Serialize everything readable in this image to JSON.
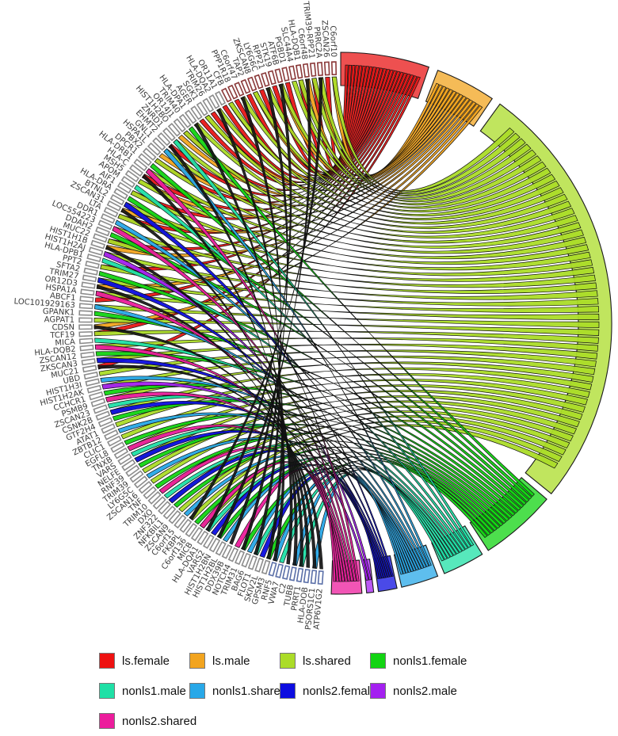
{
  "chart_data": {
    "type": "chord",
    "description_visible_text": "",
    "genes": [
      "C6orf10",
      "ZSCAN26",
      "PRRC2A",
      "TRIM39-RPP21",
      "C6orf48",
      "HLA-DQB1",
      "SLC44A4",
      "PGBD1",
      "ATF6B",
      "STK19",
      "RPP21",
      "LY6G6C",
      "ZKSCAN8",
      "TAP2",
      "C6orf47",
      "PPP1R18",
      "CFB",
      "OR11A1",
      "HLA-DQA2",
      "TRIM26",
      "SGK1",
      "AGER",
      "HLA-DPA1",
      "TRIM40",
      "OR14J1",
      "HIST1H2BO",
      "ZNRD1",
      "EHMT2",
      "GNL1",
      "HSPA1L",
      "PBX2",
      "DPCR1",
      "HLA-DRB1",
      "HLA-C",
      "MSH5",
      "APOM",
      "AIF1",
      "HLA-DRA",
      "BTNL2",
      "ZSCAN31",
      "LTA",
      "DDR1",
      "LOC554223",
      "DDAH2",
      "MUC22",
      "HIST1H1B",
      "HIST1H2AJ",
      "HLA-DPB1",
      "PPT2",
      "SFTA2",
      "TRIM27",
      "OR12D3",
      "HSPA1A",
      "ABCF1",
      "LOC101929163",
      "GPANK1",
      "AGPAT1",
      "CDSN",
      "TCF19",
      "MICA",
      "HLA-DQB2",
      "ZSCAN12",
      "ZKSCAN3",
      "MUC21",
      "UBD",
      "HIST1H3I",
      "HIST1H2AK",
      "CCHCR1",
      "PSMB9",
      "ZSCAN23",
      "CSNK2B",
      "GTF2H4",
      "ATAT1",
      "ZBTB12",
      "CLIC1",
      "EGFL8",
      "TNXB",
      "VARS",
      "NELFE",
      "RNF39",
      "TRIM39",
      "LY6G5C",
      "ZSCAN16",
      "TNF",
      "TRIM10",
      "DXO",
      "ZNF322",
      "NFKBIL1",
      "ZSCAN9",
      "C6orf15",
      "FKBPL",
      "C6orf136",
      "MICB",
      "HLA-DQA1",
      "VARS2",
      "HIST1H2BN",
      "HIST1H2BL",
      "DDX39B",
      "NOTCH4",
      "TRIM31",
      "BAG6",
      "FLOT1",
      "SKIV2L",
      "GPSM3",
      "RNF5",
      "VWA7",
      "C2",
      "TUBB",
      "PRRT1",
      "HLA-DOB",
      "PSORS1C1",
      "ATP6V1G2"
    ],
    "gene_arc": {
      "start_deg": 184.5,
      "end_deg": 358.5
    },
    "sectors": [
      {
        "name": "ls.female",
        "color": "#E81616",
        "start_deg": 0,
        "end_deg": 19,
        "links": [
          1,
          3,
          5,
          7,
          9,
          11,
          13,
          15,
          17,
          19,
          21,
          24,
          27,
          30,
          33,
          36,
          40,
          44,
          48,
          53,
          58,
          63
        ]
      },
      {
        "name": "ls.male",
        "color": "#F2A41F",
        "start_deg": 21,
        "end_deg": 34,
        "links": [
          0,
          2,
          4,
          8,
          12,
          16,
          20,
          25,
          29,
          34,
          39,
          45,
          51,
          57
        ]
      },
      {
        "name": "ls.shared",
        "color": "#ABDC28",
        "start_deg": 36,
        "end_deg": 129,
        "links": [
          0,
          2,
          3,
          5,
          6,
          8,
          10,
          12,
          14,
          16,
          18,
          20,
          22,
          24,
          26,
          28,
          30,
          32,
          34,
          36,
          38,
          40,
          42,
          44,
          46,
          48,
          50,
          52,
          54,
          56,
          58,
          60,
          62,
          64,
          66,
          68,
          70,
          72,
          74,
          76,
          78,
          80,
          82,
          84,
          86,
          88,
          90,
          92
        ]
      },
      {
        "name": "nonls1.female",
        "color": "#12D412",
        "start_deg": 130.5,
        "end_deg": 147,
        "links": [
          23,
          31,
          37,
          43,
          49,
          55,
          61,
          67,
          71,
          75,
          79,
          83,
          87,
          91,
          95,
          99,
          103
        ]
      },
      {
        "name": "nonls1.male",
        "color": "#1FE0A6",
        "start_deg": 148.5,
        "end_deg": 157.5,
        "links": [
          26,
          35,
          47,
          59,
          69,
          77,
          85,
          93,
          101,
          105,
          108
        ]
      },
      {
        "name": "nonls1.shared",
        "color": "#28A8E8",
        "start_deg": 159,
        "end_deg": 167,
        "links": [
          28,
          41,
          54,
          65,
          73,
          81,
          89,
          96,
          100,
          104,
          107,
          110
        ]
      },
      {
        "name": "nonls2.female",
        "color": "#0D0DE0",
        "start_deg": 168,
        "end_deg": 172,
        "links": [
          38,
          50,
          62,
          70,
          78,
          86,
          94,
          102
        ]
      },
      {
        "name": "nonls2.male",
        "color": "#A420F0",
        "start_deg": 173,
        "end_deg": 174.5,
        "links": [
          46,
          66
        ]
      },
      {
        "name": "nonls2.shared",
        "color": "#EC1C9C",
        "start_deg": 175.5,
        "end_deg": 182,
        "links": [
          32,
          42,
          52,
          60,
          68,
          76,
          84,
          92,
          98
        ]
      }
    ],
    "extra_links_color": "#151515",
    "extra_links": [
      [
        4,
        95
      ],
      [
        10,
        97
      ],
      [
        14,
        99
      ],
      [
        18,
        101
      ],
      [
        22,
        103
      ],
      [
        27,
        104
      ],
      [
        33,
        106
      ],
      [
        39,
        107
      ],
      [
        45,
        108
      ],
      [
        51,
        109
      ],
      [
        57,
        110
      ],
      [
        63,
        111
      ],
      [
        8,
        93
      ],
      [
        2,
        90
      ]
    ],
    "tick_styles": [
      {
        "from": 0,
        "to": 16,
        "color": "#8B3A3A"
      },
      {
        "from": 17,
        "to": 103,
        "color": "#8C8C8C"
      },
      {
        "from": 104,
        "to": 111,
        "color": "#5A6FA8"
      }
    ]
  },
  "legend": {
    "items": [
      {
        "label": "ls.female",
        "color": "#EE1111"
      },
      {
        "label": "ls.male",
        "color": "#F2A41F"
      },
      {
        "label": "ls.shared",
        "color": "#ABDC28"
      },
      {
        "label": "nonls1.female",
        "color": "#12D412"
      },
      {
        "label": "nonls1.male",
        "color": "#1FE0A6"
      },
      {
        "label": "nonls1.shared",
        "color": "#28A8E8"
      },
      {
        "label": "nonls2.female",
        "color": "#0D0DE0"
      },
      {
        "label": "nonls2.male",
        "color": "#A420F0"
      },
      {
        "label": "nonls2.shared",
        "color": "#EC1C9C"
      }
    ]
  }
}
